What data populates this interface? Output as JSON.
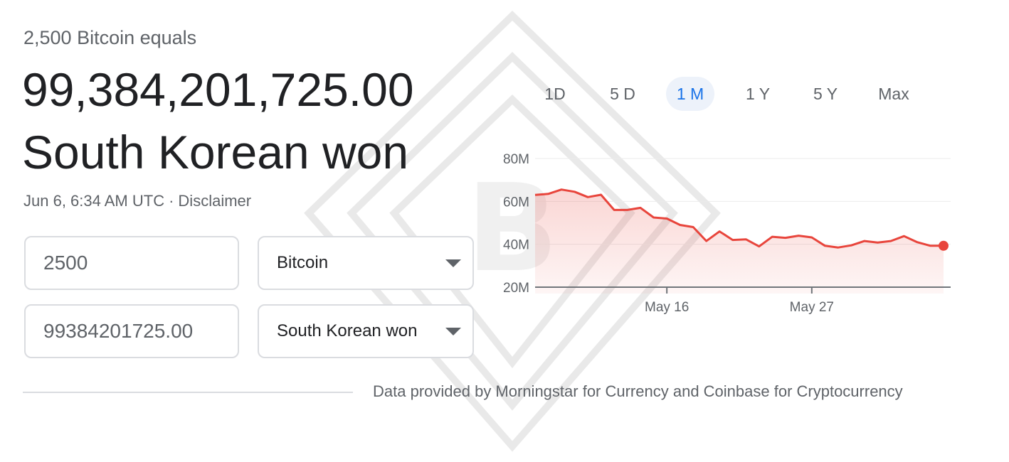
{
  "converter": {
    "equals_label": "2,500 Bitcoin equals",
    "result_amount": "99,384,201,725.00",
    "result_currency": "South Korean won",
    "timestamp": "Jun 6, 6:34 AM UTC",
    "separator": "·",
    "disclaimer": "Disclaimer",
    "from_amount": "2500",
    "from_currency": "Bitcoin",
    "to_amount": "99384201725.00",
    "to_currency": "South Korean won"
  },
  "tabs": [
    {
      "label": "1D",
      "active": false
    },
    {
      "label": "5 D",
      "active": false
    },
    {
      "label": "1 M",
      "active": true
    },
    {
      "label": "1 Y",
      "active": false
    },
    {
      "label": "5 Y",
      "active": false
    },
    {
      "label": "Max",
      "active": false
    }
  ],
  "colors": {
    "line": "#e8453c",
    "active_tab_text": "#1a73e8",
    "active_tab_bg": "#edf2fa"
  },
  "source": "Data provided by Morningstar for Currency and Coinbase for Cryptocurrency",
  "chart_data": {
    "type": "area",
    "title": "",
    "xlabel": "",
    "ylabel": "",
    "y_unit": "M",
    "ylim": [
      20,
      80
    ],
    "yticks": [
      20,
      40,
      60,
      80
    ],
    "ytick_labels": [
      "20M",
      "40M",
      "60M",
      "80M"
    ],
    "x_range": [
      1,
      32
    ],
    "xticks": [
      11,
      22
    ],
    "xtick_labels": [
      "May 16",
      "May 27"
    ],
    "grid": true,
    "series": [
      {
        "x": [
          1,
          2,
          3,
          4,
          5,
          6,
          7,
          8,
          9,
          10,
          11,
          12,
          13,
          14,
          15,
          16,
          17,
          18,
          19,
          20,
          21,
          22,
          23,
          24,
          25,
          26,
          27,
          28,
          29,
          30,
          31,
          32
        ],
        "values": [
          63,
          63.5,
          65.5,
          64.5,
          62,
          63.1,
          56,
          56,
          57,
          52.5,
          52,
          49,
          48,
          41.5,
          46,
          42,
          42.3,
          39,
          43.5,
          43,
          44,
          43.2,
          39.3,
          38.5,
          39.5,
          41.5,
          40.8,
          41.5,
          43.8,
          41,
          39.3,
          39.3
        ]
      }
    ]
  }
}
